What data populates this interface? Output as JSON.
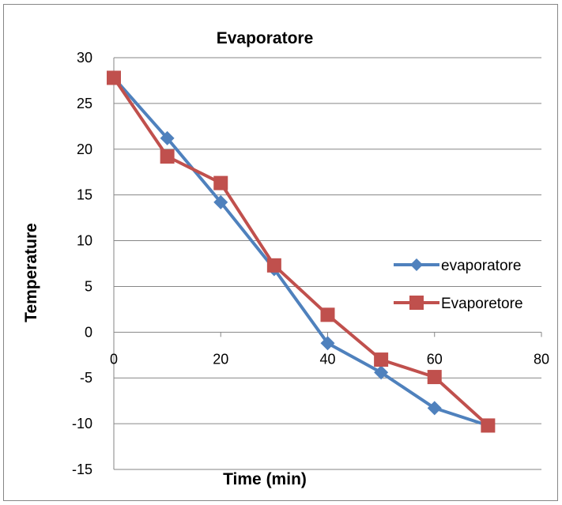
{
  "chart_data": {
    "type": "line",
    "title": "Evaporatore",
    "xlabel": "Time (min)",
    "ylabel": "Temperature",
    "xlim": [
      0,
      80
    ],
    "ylim": [
      -15,
      30
    ],
    "x_ticks": [
      "0",
      "20",
      "40",
      "60",
      "80"
    ],
    "y_ticks": [
      "30",
      "25",
      "20",
      "15",
      "10",
      "5",
      "0",
      "-5",
      "-10",
      "-15"
    ],
    "grid": "horizontal",
    "legend_position": "right",
    "series": [
      {
        "name": "evaporatore",
        "color": "#4f81bd",
        "marker": "diamond",
        "x": [
          0,
          10,
          20,
          30,
          40,
          50,
          60,
          70
        ],
        "y": [
          27.8,
          21.2,
          14.2,
          6.9,
          -1.2,
          -4.4,
          -8.3,
          -10.2
        ]
      },
      {
        "name": "Evaporetore",
        "color": "#c0504d",
        "marker": "square",
        "x": [
          0,
          10,
          20,
          30,
          40,
          50,
          60,
          70
        ],
        "y": [
          27.8,
          19.2,
          16.3,
          7.3,
          1.9,
          -3.0,
          -4.9,
          -10.2
        ]
      }
    ]
  }
}
